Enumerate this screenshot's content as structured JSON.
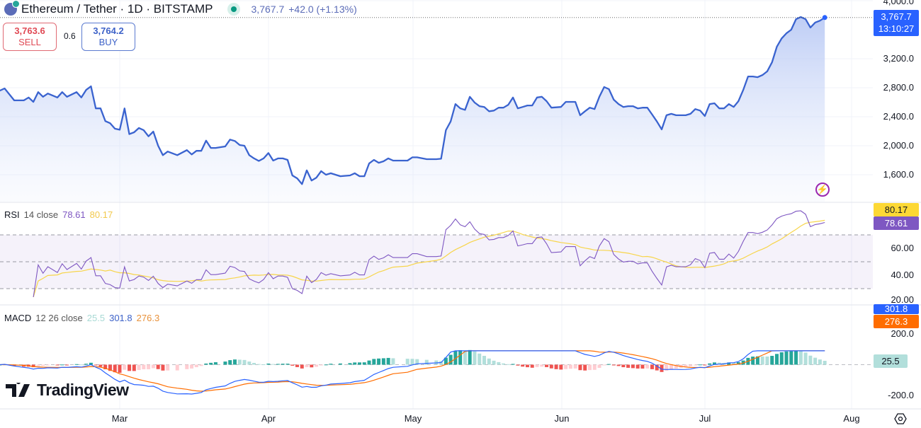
{
  "header": {
    "symbol_title": "Ethereum / Tether · 1D · BITSTAMP",
    "last_price": "3,767.7",
    "change": "+42.0 (+1.13%)",
    "market_status_icon": "market-open-dot"
  },
  "trade": {
    "sell_price": "3,763.6",
    "sell_label": "SELL",
    "spread": "0.6",
    "buy_price": "3,764.2",
    "buy_label": "BUY"
  },
  "colors": {
    "line": "#3a63cf",
    "rsi": "#7e57c2",
    "rsi_ma": "#f7d54a",
    "macd": "#2962ff",
    "signal": "#ff6d00",
    "hist_up": "#26a69a",
    "hist_up_weak": "#b2dfdb",
    "hist_down": "#ef5350",
    "hist_down_weak": "#ffcdd2"
  },
  "price_axis": {
    "labels": [
      "4,000.0",
      "3,200.0",
      "2,800.0",
      "2,400.0",
      "2,000.0",
      "1,600.0"
    ],
    "last_tag": "3,767.7",
    "countdown": "13:10:27"
  },
  "rsi": {
    "title": "RSI",
    "params": "14 close",
    "value": "78.61",
    "ma_value": "80.17",
    "axis_labels": [
      "60.00",
      "40.00",
      "20.00"
    ],
    "tag_rsi": "78.61",
    "tag_ma": "80.17"
  },
  "macd": {
    "title": "MACD",
    "params": "12 26 close",
    "hist_value": "25.5",
    "macd_value": "301.8",
    "signal_value": "276.3",
    "axis_labels": [
      "200.0",
      "-200.0"
    ],
    "tag_macd": "301.8",
    "tag_signal": "276.3",
    "tag_hist": "25.5"
  },
  "time_axis": {
    "labels": [
      "Mar",
      "Apr",
      "May",
      "Jun",
      "Jul",
      "Aug"
    ]
  },
  "branding": {
    "logo_text": "TradingView"
  },
  "chart_data": [
    {
      "type": "area",
      "ylim": [
        1400,
        4000
      ],
      "grid": true,
      "x": [
        "2025-02-04",
        "2025-02-05",
        "2025-02-07",
        "2025-02-09",
        "2025-02-10",
        "2025-02-11",
        "2025-02-12",
        "2025-02-13",
        "2025-02-14",
        "2025-02-16",
        "2025-02-17",
        "2025-02-18",
        "2025-02-20",
        "2025-02-21",
        "2025-02-22",
        "2025-02-23",
        "2025-02-24",
        "2025-02-25",
        "2025-02-26",
        "2025-02-27",
        "2025-02-28",
        "2025-03-01",
        "2025-03-02",
        "2025-03-03",
        "2025-03-04",
        "2025-03-05",
        "2025-03-06",
        "2025-03-07",
        "2025-03-08",
        "2025-03-09",
        "2025-03-10",
        "2025-03-11",
        "2025-03-13",
        "2025-03-15",
        "2025-03-16",
        "2025-03-17",
        "2025-03-18",
        "2025-03-19",
        "2025-03-20",
        "2025-03-21",
        "2025-03-23",
        "2025-03-24",
        "2025-03-25",
        "2025-03-26",
        "2025-03-27",
        "2025-03-28",
        "2025-03-29",
        "2025-03-30",
        "2025-03-31",
        "2025-04-01",
        "2025-04-02",
        "2025-04-03",
        "2025-04-04",
        "2025-04-05",
        "2025-04-06",
        "2025-04-07",
        "2025-04-08",
        "2025-04-09",
        "2025-04-10",
        "2025-04-11",
        "2025-04-12",
        "2025-04-13",
        "2025-04-14",
        "2025-04-16",
        "2025-04-18",
        "2025-04-19",
        "2025-04-20",
        "2025-04-21",
        "2025-04-22",
        "2025-04-23",
        "2025-04-24",
        "2025-04-25",
        "2025-04-26",
        "2025-04-27",
        "2025-04-30",
        "2025-05-01",
        "2025-05-02",
        "2025-05-04",
        "2025-05-06",
        "2025-05-07",
        "2025-05-08",
        "2025-05-09",
        "2025-05-10",
        "2025-05-11",
        "2025-05-12",
        "2025-05-13",
        "2025-05-14",
        "2025-05-15",
        "2025-05-16",
        "2025-05-17",
        "2025-05-18",
        "2025-05-19",
        "2025-05-20",
        "2025-05-21",
        "2025-05-22",
        "2025-05-23",
        "2025-05-24",
        "2025-05-25",
        "2025-05-26",
        "2025-05-27",
        "2025-05-28",
        "2025-05-29",
        "2025-05-30",
        "2025-05-31",
        "2025-06-01",
        "2025-06-02",
        "2025-06-03",
        "2025-06-04",
        "2025-06-05",
        "2025-06-06",
        "2025-06-07",
        "2025-06-08",
        "2025-06-09",
        "2025-06-10",
        "2025-06-11",
        "2025-06-12",
        "2025-06-13",
        "2025-06-14",
        "2025-06-15",
        "2025-06-16",
        "2025-06-17",
        "2025-06-18",
        "2025-06-19",
        "2025-06-20",
        "2025-06-21",
        "2025-06-22",
        "2025-06-23",
        "2025-06-24",
        "2025-06-25",
        "2025-06-26",
        "2025-06-27",
        "2025-06-28",
        "2025-06-29",
        "2025-06-30",
        "2025-07-01",
        "2025-07-02",
        "2025-07-03",
        "2025-07-04",
        "2025-07-05",
        "2025-07-06",
        "2025-07-07",
        "2025-07-08",
        "2025-07-09",
        "2025-07-10",
        "2025-07-11",
        "2025-07-12",
        "2025-07-13",
        "2025-07-14",
        "2025-07-15",
        "2025-07-16",
        "2025-07-17",
        "2025-07-18",
        "2025-07-19",
        "2025-07-20",
        "2025-07-21",
        "2025-07-22",
        "2025-07-23",
        "2025-07-24",
        "2025-07-25",
        "2025-07-26"
      ],
      "values": [
        2760,
        2790,
        2625,
        2625,
        2665,
        2605,
        2740,
        2675,
        2720,
        2665,
        2740,
        2675,
        2740,
        2665,
        2770,
        2820,
        2515,
        2515,
        2340,
        2310,
        2235,
        2220,
        2515,
        2160,
        2185,
        2245,
        2215,
        2130,
        2195,
        2000,
        1870,
        1920,
        1870,
        1940,
        1880,
        1930,
        1930,
        2070,
        1970,
        1970,
        1990,
        2085,
        2065,
        2010,
        2000,
        1870,
        1825,
        1790,
        1825,
        1900,
        1795,
        1825,
        1825,
        1805,
        1590,
        1550,
        1470,
        1660,
        1520,
        1560,
        1650,
        1600,
        1620,
        1580,
        1590,
        1620,
        1580,
        1580,
        1755,
        1805,
        1765,
        1785,
        1825,
        1795,
        1795,
        1840,
        1840,
        1815,
        1815,
        1820,
        2215,
        2335,
        2575,
        2515,
        2495,
        2675,
        2595,
        2545,
        2535,
        2475,
        2485,
        2525,
        2525,
        2565,
        2665,
        2515,
        2535,
        2555,
        2555,
        2665,
        2675,
        2615,
        2525,
        2530,
        2535,
        2605,
        2605,
        2605,
        2420,
        2475,
        2525,
        2505,
        2675,
        2810,
        2780,
        2635,
        2575,
        2535,
        2545,
        2545,
        2515,
        2525,
        2525,
        2430,
        2335,
        2225,
        2420,
        2440,
        2420,
        2420,
        2420,
        2440,
        2505,
        2485,
        2410,
        2575,
        2585,
        2515,
        2515,
        2575,
        2535,
        2615,
        2770,
        2955,
        2955,
        2945,
        2975,
        3025,
        3150,
        3365,
        3480,
        3550,
        3600,
        3745,
        3775,
        3745,
        3630,
        3700,
        3725,
        3767.7
      ]
    },
    {
      "type": "line",
      "title": "RSI 14 close",
      "ylim": [
        20,
        90
      ],
      "bands": [
        30,
        50,
        70
      ],
      "last": {
        "rsi": 78.61,
        "ma": 80.17
      }
    },
    {
      "type": "bar",
      "title": "MACD 12 26 close",
      "ylim": [
        -250,
        330
      ],
      "last": {
        "histogram": 25.5,
        "macd": 301.8,
        "signal": 276.3
      }
    }
  ]
}
